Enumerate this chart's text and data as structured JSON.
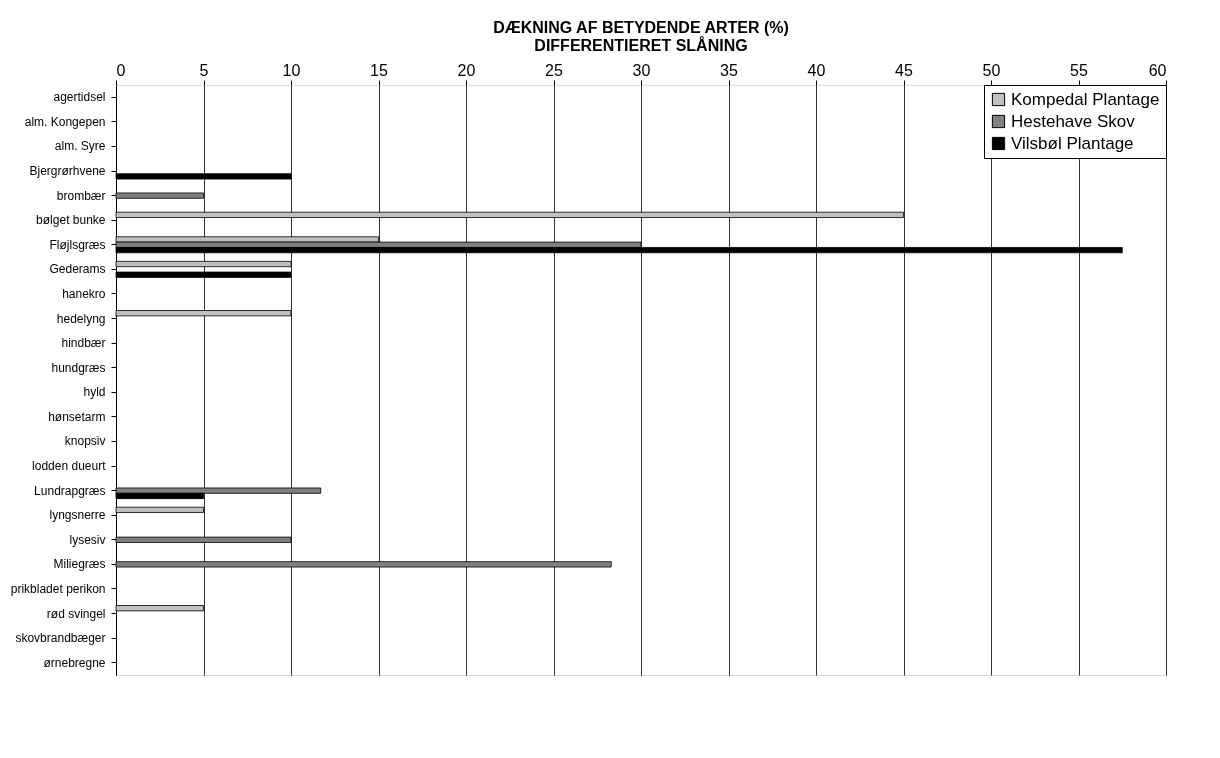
{
  "chart_data": {
    "type": "bar",
    "orientation": "horizontal",
    "title": "DÆKNING AF BETYDENDE ARTER (%)",
    "subtitle": "DIFFERENTIERET SLÅNING",
    "categories": [
      "agertidsel",
      "alm. Kongepen",
      "alm. Syre",
      "Bjergrørhvene",
      "brombær",
      "bølget bunke",
      "Fløjlsgræs",
      "Gederams",
      "hanekro",
      "hedelyng",
      "hindbær",
      "hundgræs",
      "hyld",
      "hønsetarm",
      "knopsiv",
      "lodden dueurt",
      "Lundrapgræs",
      "lyngsnerre",
      "lysesiv",
      "Miliegræs",
      "prikbladet perikon",
      "rød svingel",
      "skovbrandbæger",
      "ørnebregne"
    ],
    "series": [
      {
        "name": "Kompedal Plantage",
        "color": "#c0c0c0",
        "values": [
          null,
          null,
          null,
          null,
          null,
          45,
          15,
          10,
          null,
          10,
          null,
          null,
          null,
          null,
          null,
          null,
          null,
          5,
          null,
          null,
          null,
          5,
          null,
          null
        ]
      },
      {
        "name": "Hestehave Skov",
        "color": "#808080",
        "values": [
          null,
          null,
          null,
          null,
          5,
          null,
          30,
          null,
          null,
          null,
          null,
          null,
          null,
          null,
          null,
          null,
          11.7,
          null,
          10,
          28.3,
          null,
          null,
          null,
          null
        ]
      },
      {
        "name": "Vilsbøl Plantage",
        "color": "#000000",
        "values": [
          null,
          null,
          null,
          10,
          null,
          null,
          57.5,
          10,
          null,
          null,
          null,
          null,
          null,
          null,
          null,
          null,
          5,
          null,
          null,
          null,
          null,
          null,
          null,
          null
        ]
      }
    ],
    "xlim": [
      0,
      60
    ],
    "xticks": [
      0,
      5,
      10,
      15,
      20,
      25,
      30,
      35,
      40,
      45,
      50,
      55,
      60
    ],
    "grid": "x",
    "legend": "top right"
  }
}
